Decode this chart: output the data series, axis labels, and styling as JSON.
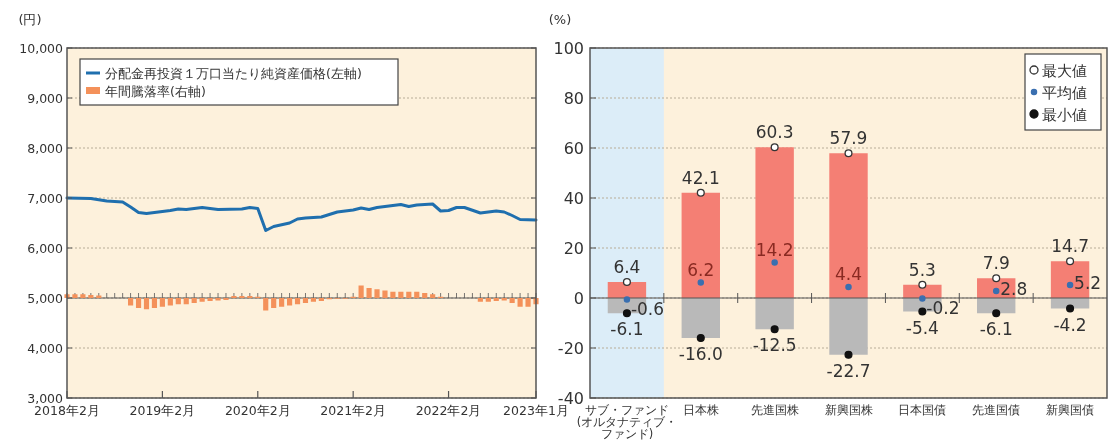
{
  "chart_data": [
    {
      "type": "line",
      "ylabel": "(円)",
      "y2label": "(%)",
      "grid": "y",
      "legend": "top left",
      "x": [
        "2018-02",
        "2018-05",
        "2018-07",
        "2018-09",
        "2018-10",
        "2018-11",
        "2018-12",
        "2019-03",
        "2019-04",
        "2019-05",
        "2019-07",
        "2019-09",
        "2019-12",
        "2020-01",
        "2020-02",
        "2020-03",
        "2020-04",
        "2020-06",
        "2020-07",
        "2020-08",
        "2020-10",
        "2020-12",
        "2021-02",
        "2021-03",
        "2021-04",
        "2021-05",
        "2021-06",
        "2021-08",
        "2021-09",
        "2021-10",
        "2021-12",
        "2022-01",
        "2022-02",
        "2022-03",
        "2022-04",
        "2022-06",
        "2022-08",
        "2022-09",
        "2022-10",
        "2022-11",
        "2023-01"
      ],
      "series": [
        {
          "name": "分配金再投資１万口当たり純資産価格(左軸)",
          "color": "#1f6fae",
          "values": [
            7000,
            6990,
            6940,
            6920,
            6820,
            6710,
            6690,
            6750,
            6780,
            6770,
            6810,
            6770,
            6780,
            6810,
            6790,
            6350,
            6430,
            6500,
            6580,
            6600,
            6620,
            6720,
            6760,
            6800,
            6770,
            6810,
            6830,
            6870,
            6830,
            6860,
            6880,
            6740,
            6750,
            6810,
            6810,
            6700,
            6740,
            6720,
            6650,
            6570,
            6560
          ]
        },
        {
          "name": "年間騰落率(右軸)",
          "type": "bar",
          "axis": "y2",
          "color": "#f4915a",
          "x": [
            "2018-02",
            "2018-03",
            "2018-04",
            "2018-05",
            "2018-06",
            "2018-07",
            "2018-08",
            "2018-09",
            "2018-10",
            "2018-11",
            "2018-12",
            "2019-01",
            "2019-02",
            "2019-03",
            "2019-04",
            "2019-05",
            "2019-06",
            "2019-07",
            "2019-08",
            "2019-09",
            "2019-10",
            "2019-11",
            "2019-12",
            "2020-01",
            "2020-02",
            "2020-03",
            "2020-04",
            "2020-05",
            "2020-06",
            "2020-07",
            "2020-08",
            "2020-09",
            "2020-10",
            "2020-11",
            "2020-12",
            "2021-01",
            "2021-02",
            "2021-03",
            "2021-04",
            "2021-05",
            "2021-06",
            "2021-07",
            "2021-08",
            "2021-09",
            "2021-10",
            "2021-11",
            "2021-12",
            "2022-01",
            "2022-02",
            "2022-03",
            "2022-04",
            "2022-05",
            "2022-06",
            "2022-07",
            "2022-08",
            "2022-09",
            "2022-10",
            "2022-11",
            "2022-12",
            "2023-01"
          ],
          "values": [
            1.5,
            1.5,
            1.5,
            1.2,
            1.0,
            null,
            null,
            null,
            -3,
            -4,
            -4.5,
            -4,
            -3.5,
            -3,
            -2.5,
            -2.5,
            -2,
            -1.5,
            -1.2,
            -1,
            -0.8,
            0.8,
            0.8,
            0.8,
            0.5,
            -5,
            -4,
            -3.5,
            -3,
            -2.5,
            -2,
            -1.5,
            -1.2,
            -0.5,
            -0.3,
            -0.3,
            0.5,
            5,
            4,
            3.5,
            3,
            2.5,
            2.5,
            2.5,
            2.5,
            2,
            1.5,
            0.5,
            null,
            null,
            null,
            null,
            -1.5,
            -1.5,
            -1.2,
            -1,
            -2,
            -3.5,
            -3.5,
            -2.5
          ]
        }
      ],
      "xlim": [
        "2018-02",
        "2023-01"
      ],
      "xticks": [
        {
          "value": "2018-02",
          "label": "2018年2月"
        },
        {
          "value": "2019-02",
          "label": "2019年2月"
        },
        {
          "value": "2020-02",
          "label": "2020年2月"
        },
        {
          "value": "2021-02",
          "label": "2021年2月"
        },
        {
          "value": "2022-02",
          "label": "2022年2月"
        },
        {
          "value": "2023-01",
          "label": "2023年1月"
        }
      ],
      "ylim": [
        3000,
        10000
      ],
      "yticks": [
        {
          "value": 3000,
          "label": "3,000"
        },
        {
          "value": 4000,
          "label": "4,000"
        },
        {
          "value": 5000,
          "label": "5,000"
        },
        {
          "value": 6000,
          "label": "6,000"
        },
        {
          "value": 7000,
          "label": "7,000"
        },
        {
          "value": 8000,
          "label": "8,000"
        },
        {
          "value": 9000,
          "label": "9,000"
        },
        {
          "value": 10000,
          "label": "10,000"
        }
      ],
      "y2lim": [
        -40,
        100
      ],
      "y2ticks": [
        -40,
        -20,
        0,
        20,
        40,
        60,
        80,
        100
      ]
    },
    {
      "type": "bar",
      "stacked": true,
      "grid": "y",
      "legend": "top right",
      "tick_labels": "x",
      "categories": [
        "サブ・ファンド(オルタナティブ・ファンド)",
        "日本株",
        "先進国株",
        "新興国株",
        "日本国債",
        "先進国債",
        "新興国債"
      ],
      "bands": [
        {
          "axis": "x",
          "from": "サブ・ファンド(オルタナティブ・ファンド)",
          "to": "サブ・ファンド(オルタナティブ・ファンド)",
          "color": "#dcedf8"
        }
      ],
      "series": [
        {
          "color": "#f47f74",
          "values": [
            6.4,
            42.1,
            60.3,
            57.9,
            5.3,
            7.9,
            14.7
          ]
        },
        {
          "color": "#b9b9b9",
          "values": [
            -6.1,
            -16.0,
            -12.5,
            -22.7,
            -5.4,
            -6.1,
            -4.2
          ]
        },
        {
          "name": "最大値",
          "type": "scatter",
          "marker": "circle",
          "color": "#ffffff",
          "values": [
            6.4,
            42.1,
            60.3,
            57.9,
            5.3,
            7.9,
            14.7
          ],
          "value_labels": [
            "6.4",
            "42.1",
            "60.3",
            "57.9",
            "5.3",
            "7.9",
            "14.7"
          ]
        },
        {
          "name": "平均値",
          "type": "scatter",
          "marker": "circle",
          "color": "#3a6fb0",
          "values": [
            -0.6,
            6.2,
            14.2,
            4.4,
            -0.2,
            2.8,
            5.2
          ],
          "value_labels": [
            "-0.6",
            "6.2",
            "14.2",
            "4.4",
            "-0.2",
            "2.8",
            "5.2"
          ]
        },
        {
          "name": "最小値",
          "type": "scatter",
          "marker": "circle",
          "color": "#111111",
          "values": [
            -6.1,
            -16.0,
            -12.5,
            -22.7,
            -5.4,
            -6.1,
            -4.2
          ],
          "value_labels": [
            "-6.1",
            "-16.0",
            "-12.5",
            "-22.7",
            "-5.4",
            "-6.1",
            "-4.2"
          ]
        }
      ],
      "ylim": [
        -40,
        100
      ],
      "yticks": [
        -40,
        -20,
        0,
        20,
        40,
        60,
        80,
        100
      ]
    }
  ]
}
